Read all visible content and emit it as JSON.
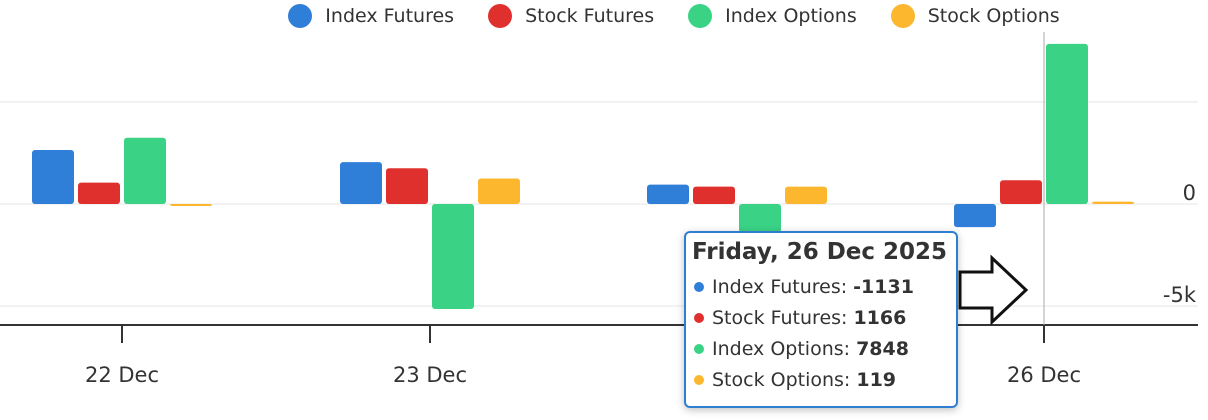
{
  "chart_data": {
    "type": "bar",
    "categories": [
      "22 Dec",
      "23 Dec",
      "",
      "26 Dec"
    ],
    "series": [
      {
        "name": "Index Futures",
        "color": "#2f7ed8",
        "values": [
          2650,
          2050,
          950,
          -1131
        ]
      },
      {
        "name": "Stock Futures",
        "color": "#e0302e",
        "values": [
          1050,
          1750,
          850,
          1166
        ]
      },
      {
        "name": "Index Options",
        "color": "#3ad386",
        "values": [
          3250,
          -5150,
          -1400,
          7848
        ]
      },
      {
        "name": "Stock Options",
        "color": "#fcb72f",
        "values": [
          -50,
          1250,
          850,
          119
        ]
      }
    ],
    "y_ticks": [
      {
        "value": 0,
        "label": "0"
      },
      {
        "value": -5000,
        "label": "-5k"
      }
    ],
    "ylim": [
      -5900,
      8500
    ],
    "legend_placement": "top",
    "grid": true
  },
  "tooltip": {
    "title": "Friday, 26 Dec 2025",
    "rows": [
      {
        "label": "Index Futures:",
        "value": "-1131"
      },
      {
        "label": "Stock Futures:",
        "value": "1166"
      },
      {
        "label": "Index Options:",
        "value": "7848"
      },
      {
        "label": "Stock Options:",
        "value": "119"
      }
    ]
  },
  "cursor": "arrow-pointer-icon"
}
